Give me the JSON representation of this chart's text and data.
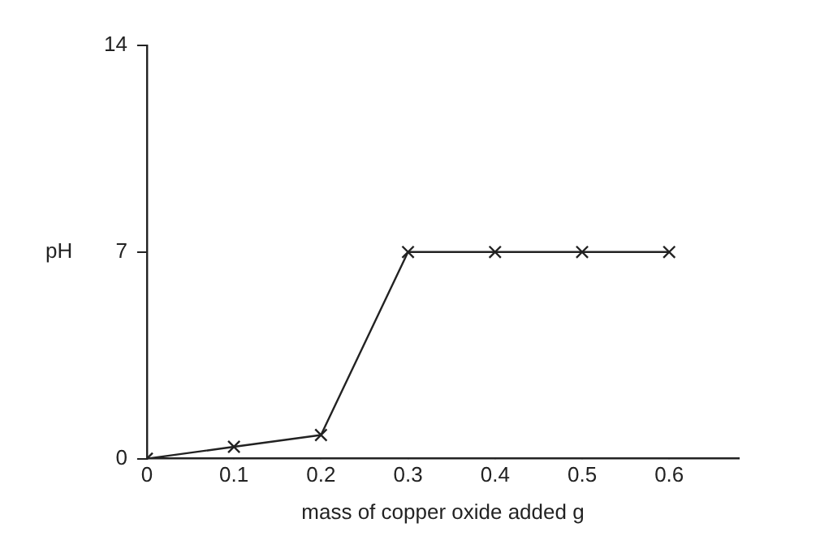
{
  "chart_data": {
    "type": "line",
    "xlabel": "mass of copper oxide added g",
    "ylabel": "pH",
    "series": [
      {
        "color": "#222222",
        "x": [
          0,
          0.1,
          0.2,
          0.3,
          0.4,
          0.5,
          0.6
        ],
        "values": [
          0,
          0.4,
          0.8,
          7,
          7,
          7,
          7
        ]
      }
    ],
    "xlim": [
      0,
      0.68
    ],
    "xticks": [
      0,
      0.1,
      0.2,
      0.3,
      0.4,
      0.5,
      0.6
    ],
    "ylim": [
      0,
      14
    ],
    "yticks": [
      0,
      7,
      14
    ],
    "grid": false,
    "legend": false,
    "marker": "cross",
    "line_style": "solid"
  }
}
